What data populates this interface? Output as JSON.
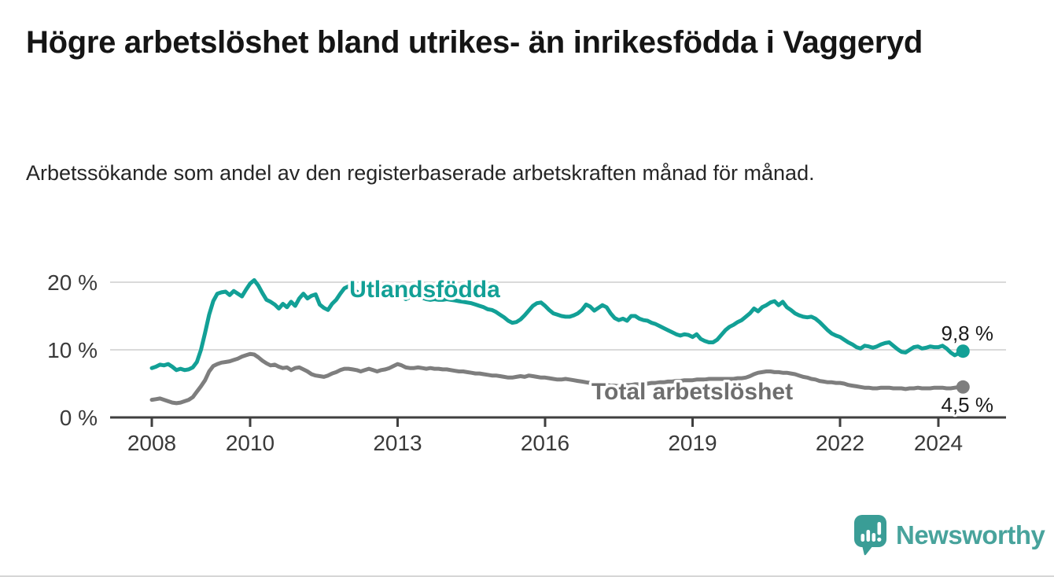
{
  "chart_data": {
    "type": "line",
    "title": "Högre arbetslöshet bland utrikes- än inrikesfödda i Vaggeryd",
    "subtitle": "Arbetssökande som andel av den registerbaserade arbetskraften månad för månad.",
    "unit": "%",
    "frequency": "monthly",
    "x_start": "2008-01",
    "x_end": "2024-07",
    "grid": "horizontal-only",
    "legend_position": "inline-labels",
    "x_axis": {
      "tick_years": [
        2008,
        2010,
        2013,
        2016,
        2019,
        2022,
        2024
      ],
      "tick_labels": [
        "2008",
        "2010",
        "2013",
        "2016",
        "2019",
        "2022",
        "2024"
      ]
    },
    "y_axis": {
      "tick_values": [
        0,
        10,
        20
      ],
      "tick_labels": [
        "0 %",
        "10 %",
        "20 %"
      ],
      "range": [
        0,
        21
      ]
    },
    "series": [
      {
        "name": "Utlandsfödda",
        "color": "#12a096",
        "end_label": "9,8 %",
        "end_value": 9.8,
        "values": [
          7.3,
          7.5,
          7.8,
          7.7,
          7.9,
          7.5,
          7.0,
          7.2,
          7.0,
          7.1,
          7.4,
          8.2,
          10.0,
          12.5,
          15.2,
          17.2,
          18.3,
          18.5,
          18.6,
          18.1,
          18.7,
          18.3,
          17.9,
          18.9,
          19.8,
          20.3,
          19.5,
          18.4,
          17.4,
          17.1,
          16.7,
          16.1,
          16.8,
          16.3,
          17.1,
          16.5,
          17.6,
          18.3,
          17.6,
          18.0,
          18.2,
          16.7,
          16.2,
          15.9,
          16.8,
          17.4,
          18.3,
          19.1,
          19.4,
          19.0,
          18.6,
          18.3,
          18.8,
          19.0,
          18.5,
          18.1,
          18.4,
          18.0,
          18.2,
          18.4,
          18.3,
          17.9,
          17.5,
          17.8,
          18.1,
          17.9,
          17.7,
          17.5,
          17.4,
          17.5,
          17.4,
          17.4,
          17.5,
          17.4,
          17.3,
          17.2,
          17.1,
          17.0,
          16.9,
          16.7,
          16.5,
          16.3,
          16.0,
          15.9,
          15.6,
          15.2,
          14.8,
          14.3,
          14.0,
          14.1,
          14.5,
          15.1,
          15.8,
          16.5,
          16.9,
          17.0,
          16.5,
          15.9,
          15.4,
          15.2,
          15.0,
          14.9,
          14.9,
          15.1,
          15.4,
          15.9,
          16.7,
          16.4,
          15.8,
          16.2,
          16.6,
          16.3,
          15.4,
          14.7,
          14.4,
          14.6,
          14.3,
          15.0,
          15.0,
          14.6,
          14.4,
          14.3,
          14.0,
          13.8,
          13.5,
          13.2,
          12.9,
          12.6,
          12.3,
          12.1,
          12.3,
          12.2,
          11.9,
          12.3,
          11.6,
          11.3,
          11.1,
          11.1,
          11.5,
          12.2,
          12.9,
          13.4,
          13.7,
          14.1,
          14.4,
          14.9,
          15.4,
          16.1,
          15.7,
          16.3,
          16.6,
          17.0,
          17.2,
          16.6,
          17.1,
          16.3,
          15.9,
          15.4,
          15.1,
          14.9,
          14.8,
          14.9,
          14.6,
          14.1,
          13.5,
          12.9,
          12.4,
          12.1,
          11.9,
          11.5,
          11.1,
          10.8,
          10.4,
          10.2,
          10.6,
          10.5,
          10.3,
          10.5,
          10.8,
          11.0,
          11.1,
          10.6,
          10.1,
          9.7,
          9.6,
          10.0,
          10.4,
          10.5,
          10.2,
          10.3,
          10.5,
          10.4,
          10.4,
          10.6,
          10.2,
          9.6,
          9.2,
          9.5,
          9.8
        ]
      },
      {
        "name": "Total arbetslöshet",
        "color": "#7e7e7e",
        "label_color": "#6e6e6e",
        "end_label": "4,5 %",
        "end_value": 4.5,
        "values": [
          2.6,
          2.7,
          2.8,
          2.6,
          2.4,
          2.2,
          2.1,
          2.2,
          2.4,
          2.6,
          3.0,
          3.8,
          4.6,
          5.5,
          6.8,
          7.6,
          7.9,
          8.1,
          8.2,
          8.3,
          8.5,
          8.7,
          9.0,
          9.2,
          9.4,
          9.3,
          8.9,
          8.4,
          8.0,
          7.7,
          7.8,
          7.5,
          7.3,
          7.4,
          7.0,
          7.3,
          7.4,
          7.1,
          6.8,
          6.4,
          6.2,
          6.1,
          6.0,
          6.2,
          6.5,
          6.7,
          7.0,
          7.2,
          7.2,
          7.1,
          7.0,
          6.8,
          7.0,
          7.2,
          7.0,
          6.8,
          7.0,
          7.1,
          7.3,
          7.6,
          7.9,
          7.7,
          7.4,
          7.3,
          7.3,
          7.4,
          7.3,
          7.2,
          7.3,
          7.2,
          7.2,
          7.1,
          7.1,
          7.0,
          6.9,
          6.8,
          6.8,
          6.7,
          6.6,
          6.5,
          6.5,
          6.4,
          6.3,
          6.2,
          6.2,
          6.1,
          6.0,
          5.9,
          5.9,
          6.0,
          6.1,
          6.0,
          6.2,
          6.1,
          6.0,
          5.9,
          5.9,
          5.8,
          5.7,
          5.6,
          5.6,
          5.7,
          5.6,
          5.5,
          5.4,
          5.3,
          5.2,
          5.1,
          5.0,
          4.9,
          4.8,
          4.8,
          4.7,
          4.7,
          4.6,
          4.7,
          4.8,
          4.8,
          4.9,
          4.9,
          5.0,
          5.0,
          5.1,
          5.1,
          5.2,
          5.2,
          5.3,
          5.3,
          5.4,
          5.4,
          5.5,
          5.5,
          5.5,
          5.6,
          5.6,
          5.6,
          5.7,
          5.7,
          5.7,
          5.7,
          5.7,
          5.7,
          5.7,
          5.8,
          5.8,
          5.9,
          6.1,
          6.4,
          6.6,
          6.7,
          6.8,
          6.8,
          6.7,
          6.7,
          6.6,
          6.6,
          6.5,
          6.4,
          6.2,
          6.0,
          5.9,
          5.7,
          5.6,
          5.4,
          5.3,
          5.2,
          5.2,
          5.1,
          5.1,
          5.0,
          4.8,
          4.7,
          4.6,
          4.5,
          4.4,
          4.4,
          4.3,
          4.3,
          4.4,
          4.4,
          4.4,
          4.3,
          4.3,
          4.3,
          4.2,
          4.3,
          4.3,
          4.4,
          4.3,
          4.3,
          4.3,
          4.4,
          4.4,
          4.4,
          4.3,
          4.3,
          4.4,
          4.5,
          4.5
        ]
      }
    ]
  },
  "footer": {
    "brand": "Newsworthy",
    "brand_color": "#48a39c",
    "logo_icon": "newsworthy-speech-bubble-chart-icon"
  },
  "style": {
    "grid_color": "#dadada",
    "axis_color": "#3f3f3f",
    "axis_text_color": "#3a3a3a",
    "end_label_color": "#1b1b1b"
  }
}
